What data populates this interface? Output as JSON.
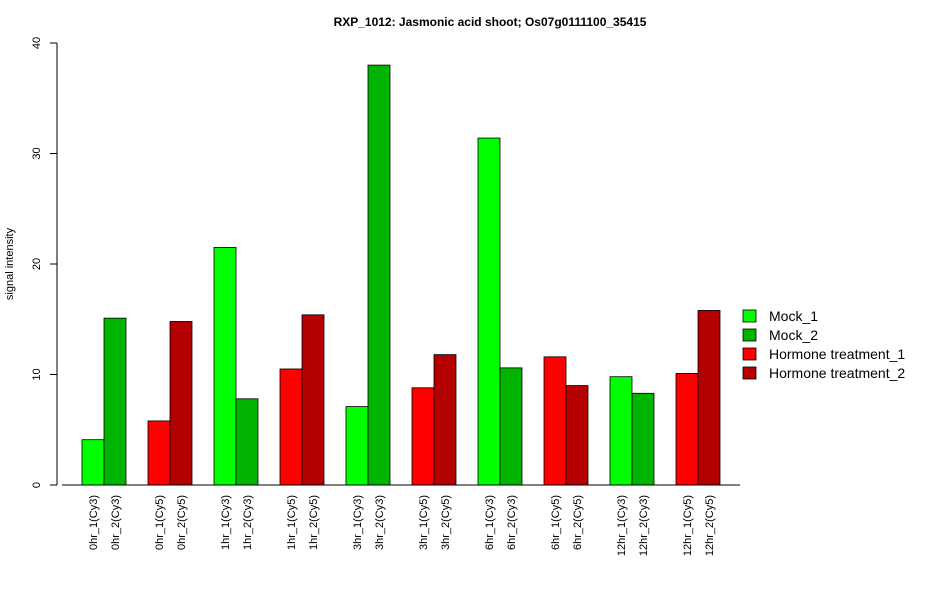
{
  "chart_data": {
    "type": "bar",
    "title": "RXP_1012: Jasmonic acid shoot; Os07g0111100_35415",
    "ylabel": "signal intensity",
    "xlabel": "",
    "ylim": [
      0,
      40
    ],
    "yticks": [
      0,
      10,
      20,
      30,
      40
    ],
    "grid": false,
    "legend_position": "right",
    "legend": [
      {
        "name": "Mock_1",
        "color": "#00ff00"
      },
      {
        "name": "Mock_2",
        "color": "#00b400"
      },
      {
        "name": "Hormone treatment_1",
        "color": "#ff0000"
      },
      {
        "name": "Hormone treatment_2",
        "color": "#b40000"
      }
    ],
    "groups": [
      {
        "bars": [
          {
            "label": "0hr_1(Cy3)",
            "value": 4.1,
            "series": "Mock_1"
          },
          {
            "label": "0hr_2(Cy3)",
            "value": 15.1,
            "series": "Mock_2"
          }
        ]
      },
      {
        "bars": [
          {
            "label": "0hr_1(Cy5)",
            "value": 5.8,
            "series": "Hormone treatment_1"
          },
          {
            "label": "0hr_2(Cy5)",
            "value": 14.8,
            "series": "Hormone treatment_2"
          }
        ]
      },
      {
        "bars": [
          {
            "label": "1hr_1(Cy3)",
            "value": 21.5,
            "series": "Mock_1"
          },
          {
            "label": "1hr_2(Cy3)",
            "value": 7.8,
            "series": "Mock_2"
          }
        ]
      },
      {
        "bars": [
          {
            "label": "1hr_1(Cy5)",
            "value": 10.5,
            "series": "Hormone treatment_1"
          },
          {
            "label": "1hr_2(Cy5)",
            "value": 15.4,
            "series": "Hormone treatment_2"
          }
        ]
      },
      {
        "bars": [
          {
            "label": "3hr_1(Cy3)",
            "value": 7.1,
            "series": "Mock_1"
          },
          {
            "label": "3hr_2(Cy3)",
            "value": 38.0,
            "series": "Mock_2"
          }
        ]
      },
      {
        "bars": [
          {
            "label": "3hr_1(Cy5)",
            "value": 8.8,
            "series": "Hormone treatment_1"
          },
          {
            "label": "3hr_2(Cy5)",
            "value": 11.8,
            "series": "Hormone treatment_2"
          }
        ]
      },
      {
        "bars": [
          {
            "label": "6hr_1(Cy3)",
            "value": 31.4,
            "series": "Mock_1"
          },
          {
            "label": "6hr_2(Cy3)",
            "value": 10.6,
            "series": "Mock_2"
          }
        ]
      },
      {
        "bars": [
          {
            "label": "6hr_1(Cy5)",
            "value": 11.6,
            "series": "Hormone treatment_1"
          },
          {
            "label": "6hr_2(Cy5)",
            "value": 9.0,
            "series": "Hormone treatment_2"
          }
        ]
      },
      {
        "bars": [
          {
            "label": "12hr_1(Cy3)",
            "value": 9.8,
            "series": "Mock_1"
          },
          {
            "label": "12hr_2(Cy3)",
            "value": 8.3,
            "series": "Mock_2"
          }
        ]
      },
      {
        "bars": [
          {
            "label": "12hr_1(Cy5)",
            "value": 10.1,
            "series": "Hormone treatment_1"
          },
          {
            "label": "12hr_2(Cy5)",
            "value": 15.8,
            "series": "Hormone treatment_2"
          }
        ]
      }
    ]
  }
}
